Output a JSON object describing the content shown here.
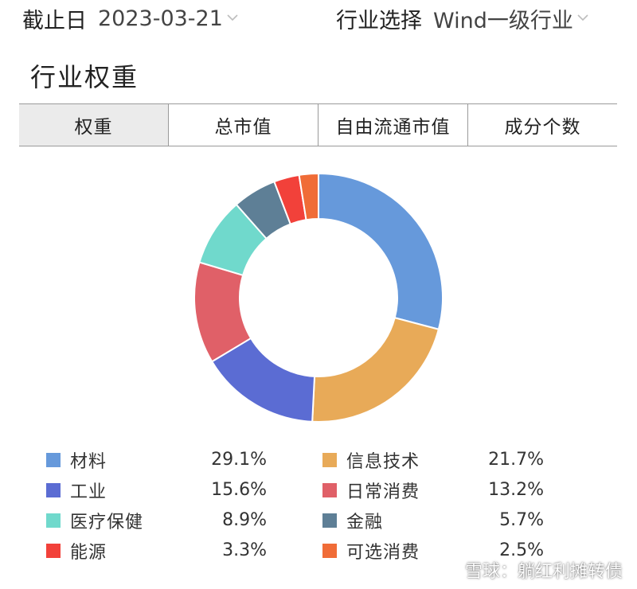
{
  "filters": {
    "date_label": "截止日",
    "date_value": "2023-03-21",
    "industry_label": "行业选择",
    "industry_value": "Wind一级行业"
  },
  "section": {
    "title": "行业权重"
  },
  "tabs": [
    {
      "label": "权重",
      "active": true
    },
    {
      "label": "总市值",
      "active": false
    },
    {
      "label": "自由流通市值",
      "active": false
    },
    {
      "label": "成分个数",
      "active": false
    }
  ],
  "chart_data": {
    "type": "pie",
    "variant": "donut",
    "legend_position": "bottom",
    "slices": [
      {
        "label": "材料",
        "value": 29.1,
        "display": "29.1%",
        "color": "#6699db"
      },
      {
        "label": "信息技术",
        "value": 21.7,
        "display": "21.7%",
        "color": "#e8aa58"
      },
      {
        "label": "工业",
        "value": 15.6,
        "display": "15.6%",
        "color": "#5b6cd3"
      },
      {
        "label": "日常消费",
        "value": 13.2,
        "display": "13.2%",
        "color": "#e06068"
      },
      {
        "label": "医疗保健",
        "value": 8.9,
        "display": "8.9%",
        "color": "#70d9cc"
      },
      {
        "label": "金融",
        "value": 5.7,
        "display": "5.7%",
        "color": "#5e7f96"
      },
      {
        "label": "能源",
        "value": 3.3,
        "display": "3.3%",
        "color": "#f2413a"
      },
      {
        "label": "可选消费",
        "value": 2.5,
        "display": "2.5%",
        "color": "#f06c37"
      }
    ]
  },
  "watermark": {
    "text": "雪球：躺红利摊转债"
  },
  "icons": {
    "dropdown": "chevron-down-icon",
    "watermark_logo": "snowball-logo-icon"
  }
}
